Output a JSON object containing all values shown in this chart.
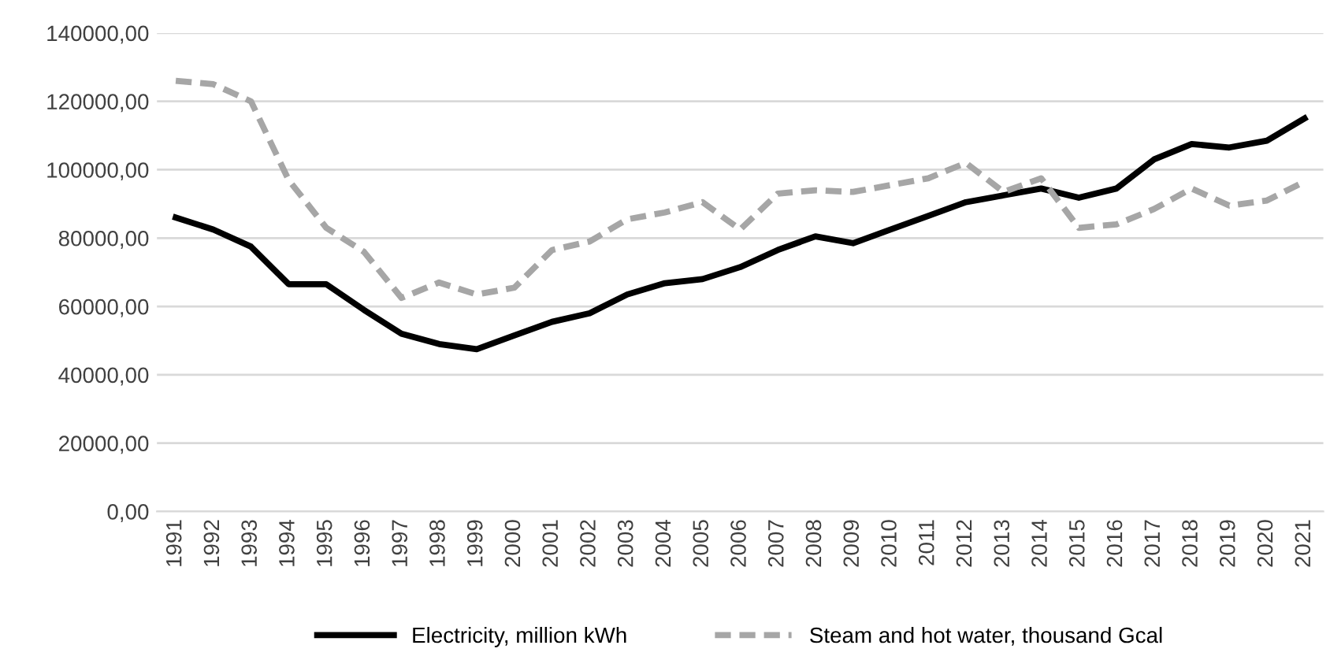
{
  "chart_data": {
    "type": "line",
    "categories": [
      "1991",
      "1992",
      "1993",
      "1994",
      "1995",
      "1996",
      "1997",
      "1998",
      "1999",
      "2000",
      "2001",
      "2002",
      "2003",
      "2004",
      "2005",
      "2006",
      "2007",
      "2008",
      "2009",
      "2010",
      "2011",
      "2012",
      "2013",
      "2014",
      "2015",
      "2016",
      "2017",
      "2018",
      "2019",
      "2020",
      "2021"
    ],
    "series": [
      {
        "name": "Electricity, million kWh",
        "color": "#000000",
        "line_style": "solid",
        "values": [
          86000,
          82500,
          77500,
          66500,
          66500,
          59000,
          52000,
          49000,
          47500,
          51500,
          55500,
          58000,
          63500,
          66800,
          68000,
          71500,
          76500,
          80500,
          78500,
          82500,
          86500,
          90500,
          92500,
          94500,
          91800,
          94500,
          103000,
          107500,
          106500,
          108500,
          115000
        ]
      },
      {
        "name": "Steam and hot water, thousand Gcal",
        "color": "#a6a6a6",
        "line_style": "dashed",
        "values": [
          126000,
          125000,
          120000,
          97000,
          83000,
          76000,
          62500,
          67000,
          63500,
          65500,
          76500,
          79000,
          85500,
          87500,
          90500,
          82500,
          93000,
          94000,
          93500,
          95500,
          97500,
          102000,
          93500,
          97500,
          83000,
          84000,
          88500,
          94500,
          89500,
          91000,
          96500
        ]
      }
    ],
    "ylim": [
      0,
      140000
    ],
    "yticks": [
      {
        "value": 0,
        "label": "0,00"
      },
      {
        "value": 20000,
        "label": "20000,00"
      },
      {
        "value": 40000,
        "label": "40000,00"
      },
      {
        "value": 60000,
        "label": "60000,00"
      },
      {
        "value": 80000,
        "label": "80000,00"
      },
      {
        "value": 100000,
        "label": "100000,00"
      },
      {
        "value": 120000,
        "label": "120000,00"
      },
      {
        "value": 140000,
        "label": "140000,00"
      }
    ],
    "grid": "y",
    "legend": "bottom"
  }
}
